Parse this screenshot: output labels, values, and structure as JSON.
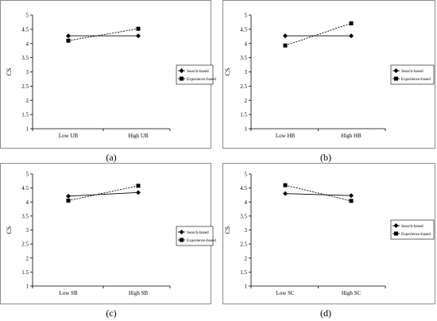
{
  "chart_data": [
    {
      "type": "line",
      "caption": "(a)",
      "ylabel": "CS",
      "categories": [
        "Low UB",
        "High UB"
      ],
      "ylim": [
        1,
        5
      ],
      "yticks": [
        "1",
        "1.5",
        "2",
        "2.5",
        "3",
        "3.5",
        "4",
        "4.5",
        "5"
      ],
      "series": [
        {
          "name": "Search-based",
          "marker": "diamond",
          "values": [
            4.27,
            4.27
          ]
        },
        {
          "name": "Experience-based",
          "marker": "square",
          "values": [
            4.1,
            4.52
          ]
        }
      ],
      "legend": "right"
    },
    {
      "type": "line",
      "caption": "(b)",
      "ylabel": "CS",
      "categories": [
        "Low HB",
        "High HB"
      ],
      "ylim": [
        1,
        5
      ],
      "yticks": [
        "1",
        "1.5",
        "2",
        "2.5",
        "3",
        "3.5",
        "4",
        "4.5",
        "5"
      ],
      "series": [
        {
          "name": "Search-based",
          "marker": "diamond",
          "values": [
            4.27,
            4.27
          ]
        },
        {
          "name": "Experience-based",
          "marker": "square",
          "values": [
            3.93,
            4.71
          ]
        }
      ],
      "legend": "right"
    },
    {
      "type": "line",
      "caption": "(c)",
      "ylabel": "CS",
      "categories": [
        "Low SB",
        "High SB"
      ],
      "ylim": [
        1,
        5
      ],
      "yticks": [
        "1",
        "1.5",
        "2",
        "2.5",
        "3",
        "3.5",
        "4",
        "4.5",
        "5"
      ],
      "series": [
        {
          "name": "Search-based",
          "marker": "diamond",
          "values": [
            4.21,
            4.34
          ]
        },
        {
          "name": "Experience-based",
          "marker": "square",
          "values": [
            4.05,
            4.58
          ]
        }
      ],
      "legend": "right"
    },
    {
      "type": "line",
      "caption": "(d)",
      "ylabel": "CS",
      "categories": [
        "Low SC",
        "High SC"
      ],
      "ylim": [
        1,
        5
      ],
      "yticks": [
        "1",
        "1.5",
        "2",
        "2.5",
        "3",
        "3.5",
        "4",
        "4.5",
        "5"
      ],
      "series": [
        {
          "name": "Search-based",
          "marker": "diamond",
          "values": [
            4.3,
            4.23
          ]
        },
        {
          "name": "Experience-based",
          "marker": "square",
          "values": [
            4.6,
            4.04
          ]
        }
      ],
      "legend": "right"
    }
  ]
}
